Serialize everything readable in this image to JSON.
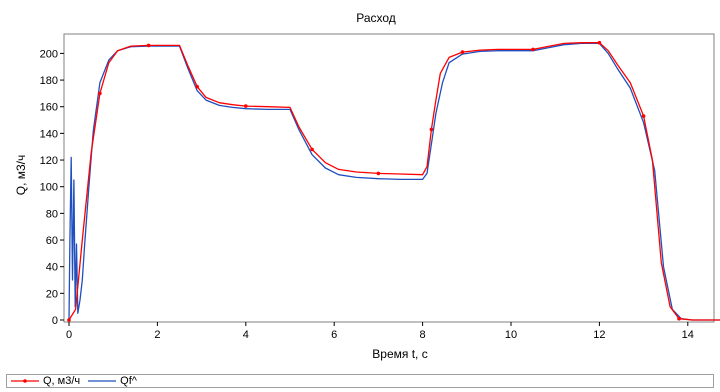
{
  "chart_data": {
    "type": "line",
    "title": "Расход",
    "xlabel": "Время t, с",
    "ylabel": "Q, м3/ч",
    "xlim": [
      0,
      15
    ],
    "ylim": [
      0,
      215
    ],
    "xticks": [
      "0",
      "2",
      "4",
      "6",
      "8",
      "10",
      "12",
      "14"
    ],
    "yticks": [
      "0",
      "20",
      "40",
      "60",
      "80",
      "100",
      "120",
      "140",
      "160",
      "180",
      "200"
    ],
    "grid": false,
    "legend_position": "bottom",
    "series": [
      {
        "name": "Q, м3/ч",
        "color": "#ff0000",
        "marker": "dot",
        "x": [
          0,
          0.15,
          0.3,
          0.5,
          0.7,
          0.9,
          1.1,
          1.4,
          1.8,
          2.2,
          2.5,
          2.7,
          2.9,
          3.1,
          3.4,
          3.7,
          4.0,
          4.5,
          5.0,
          5.2,
          5.5,
          5.8,
          6.1,
          6.5,
          7.0,
          7.5,
          8.0,
          8.1,
          8.2,
          8.3,
          8.4,
          8.6,
          8.9,
          9.3,
          9.7,
          10.2,
          10.5,
          10.8,
          11.2,
          11.6,
          12.0,
          12.2,
          12.4,
          12.7,
          13.0,
          13.2,
          13.4,
          13.6,
          13.8,
          14.1,
          14.4,
          15.0
        ],
        "y": [
          0,
          8,
          60,
          125,
          170,
          193,
          202,
          205.5,
          206,
          206,
          206,
          190,
          175,
          167,
          163,
          161.5,
          160.5,
          160,
          159.5,
          145,
          128,
          118,
          113,
          111,
          110,
          109.5,
          109,
          115,
          143,
          165,
          185,
          197,
          201,
          202.5,
          203,
          203,
          203,
          205,
          207.5,
          208,
          208,
          202,
          192,
          178,
          153,
          120,
          43,
          10,
          1,
          0,
          0,
          0
        ]
      },
      {
        "name": "Qf^",
        "color": "#1f4fbf",
        "marker": "none",
        "x": [
          0,
          0.02,
          0.05,
          0.08,
          0.11,
          0.14,
          0.17,
          0.2,
          0.25,
          0.3,
          0.35,
          0.45,
          0.55,
          0.7,
          0.9,
          1.1,
          1.4,
          1.8,
          2.2,
          2.5,
          2.7,
          2.9,
          3.1,
          3.4,
          3.7,
          4.0,
          4.5,
          5.0,
          5.2,
          5.5,
          5.8,
          6.1,
          6.5,
          7.0,
          7.5,
          8.0,
          8.1,
          8.2,
          8.3,
          8.45,
          8.6,
          8.9,
          9.3,
          9.7,
          10.2,
          10.5,
          10.8,
          11.2,
          11.6,
          12.0,
          12.2,
          12.4,
          12.7,
          13.0,
          13.25,
          13.45,
          13.65,
          13.85,
          14.1,
          14.4,
          15.0
        ],
        "y": [
          0,
          60,
          122,
          30,
          105,
          10,
          57,
          5,
          15,
          30,
          55,
          100,
          142,
          178,
          195,
          202,
          205,
          205.5,
          205.5,
          205.5,
          188,
          172,
          165,
          161,
          159.5,
          158.5,
          158,
          158,
          143,
          124,
          114,
          109,
          107,
          106,
          105.5,
          105.5,
          110,
          132,
          155,
          178,
          193,
          199.5,
          201.5,
          202,
          202,
          202,
          204,
          206.5,
          207.5,
          207.5,
          200,
          189,
          174,
          148,
          112,
          40,
          8,
          1,
          0,
          0,
          0
        ]
      }
    ]
  }
}
